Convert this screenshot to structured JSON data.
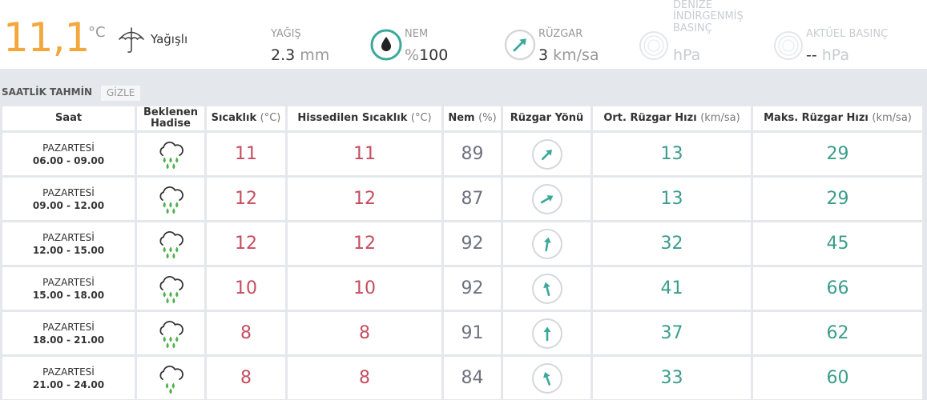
{
  "current": {
    "temperature": "11,1",
    "temp_unit": "°C",
    "condition": "Yağışlı",
    "precip": {
      "label": "YAĞIŞ",
      "value": "2.3",
      "unit": "mm"
    },
    "humidity": {
      "label": "NEM",
      "prefix": "%",
      "value": "100"
    },
    "wind": {
      "label": "RÜZGAR",
      "value": "3",
      "unit": "km/sa"
    },
    "sea_pressure": {
      "label_lines": [
        "DENİZE",
        "İNDİRGENMİŞ",
        "BASINÇ"
      ],
      "value": "",
      "unit": "hPa"
    },
    "actual_pressure": {
      "label": "AKTÜEL BASINÇ",
      "value": "--",
      "unit": "hPa"
    }
  },
  "colors": {
    "temp": "#f3a73d",
    "red": "#c64d5f",
    "gray": "#6f7180",
    "teal": "#3a9d8c",
    "wind_arrow": "#3aa89a"
  },
  "hourly": {
    "title": "SAATLİK TAHMİN",
    "toggle_label": "GİZLE",
    "headers": {
      "time": "Saat",
      "event": "Beklenen Hadise",
      "temp": "Sıcaklık",
      "temp_unit": "(°C)",
      "feels": "Hissedilen Sıcaklık",
      "feels_unit": "(°C)",
      "humidity": "Nem",
      "humidity_unit": "(%)",
      "wind_dir": "Rüzgar Yönü",
      "avg_wind": "Ort. Rüzgar Hızı",
      "avg_wind_unit": "(km/sa)",
      "max_wind": "Maks. Rüzgar Hızı",
      "max_wind_unit": "(km/sa)"
    },
    "rows": [
      {
        "day": "PAZARTESİ",
        "hours": "06.00 - 09.00",
        "icon": "rain-cloud-icon",
        "temp": "11",
        "feels": "11",
        "humidity": "89",
        "wind_dir_deg": 225,
        "avg_wind": "13",
        "max_wind": "29"
      },
      {
        "day": "PAZARTESİ",
        "hours": "09.00 - 12.00",
        "icon": "rain-cloud-icon",
        "temp": "12",
        "feels": "12",
        "humidity": "87",
        "wind_dir_deg": 240,
        "avg_wind": "13",
        "max_wind": "29"
      },
      {
        "day": "PAZARTESİ",
        "hours": "12.00 - 15.00",
        "icon": "rain-cloud-icon",
        "temp": "12",
        "feels": "12",
        "humidity": "92",
        "wind_dir_deg": 190,
        "avg_wind": "32",
        "max_wind": "45"
      },
      {
        "day": "PAZARTESİ",
        "hours": "15.00 - 18.00",
        "icon": "rain-cloud-icon",
        "temp": "10",
        "feels": "10",
        "humidity": "92",
        "wind_dir_deg": 165,
        "avg_wind": "41",
        "max_wind": "66"
      },
      {
        "day": "PAZARTESİ",
        "hours": "18.00 - 21.00",
        "icon": "rain-cloud-icon",
        "temp": "8",
        "feels": "8",
        "humidity": "91",
        "wind_dir_deg": 180,
        "avg_wind": "37",
        "max_wind": "62"
      },
      {
        "day": "PAZARTESİ",
        "hours": "21.00 - 24.00",
        "icon": "shower-cloud-icon",
        "temp": "8",
        "feels": "8",
        "humidity": "84",
        "wind_dir_deg": 160,
        "avg_wind": "33",
        "max_wind": "60"
      }
    ]
  }
}
